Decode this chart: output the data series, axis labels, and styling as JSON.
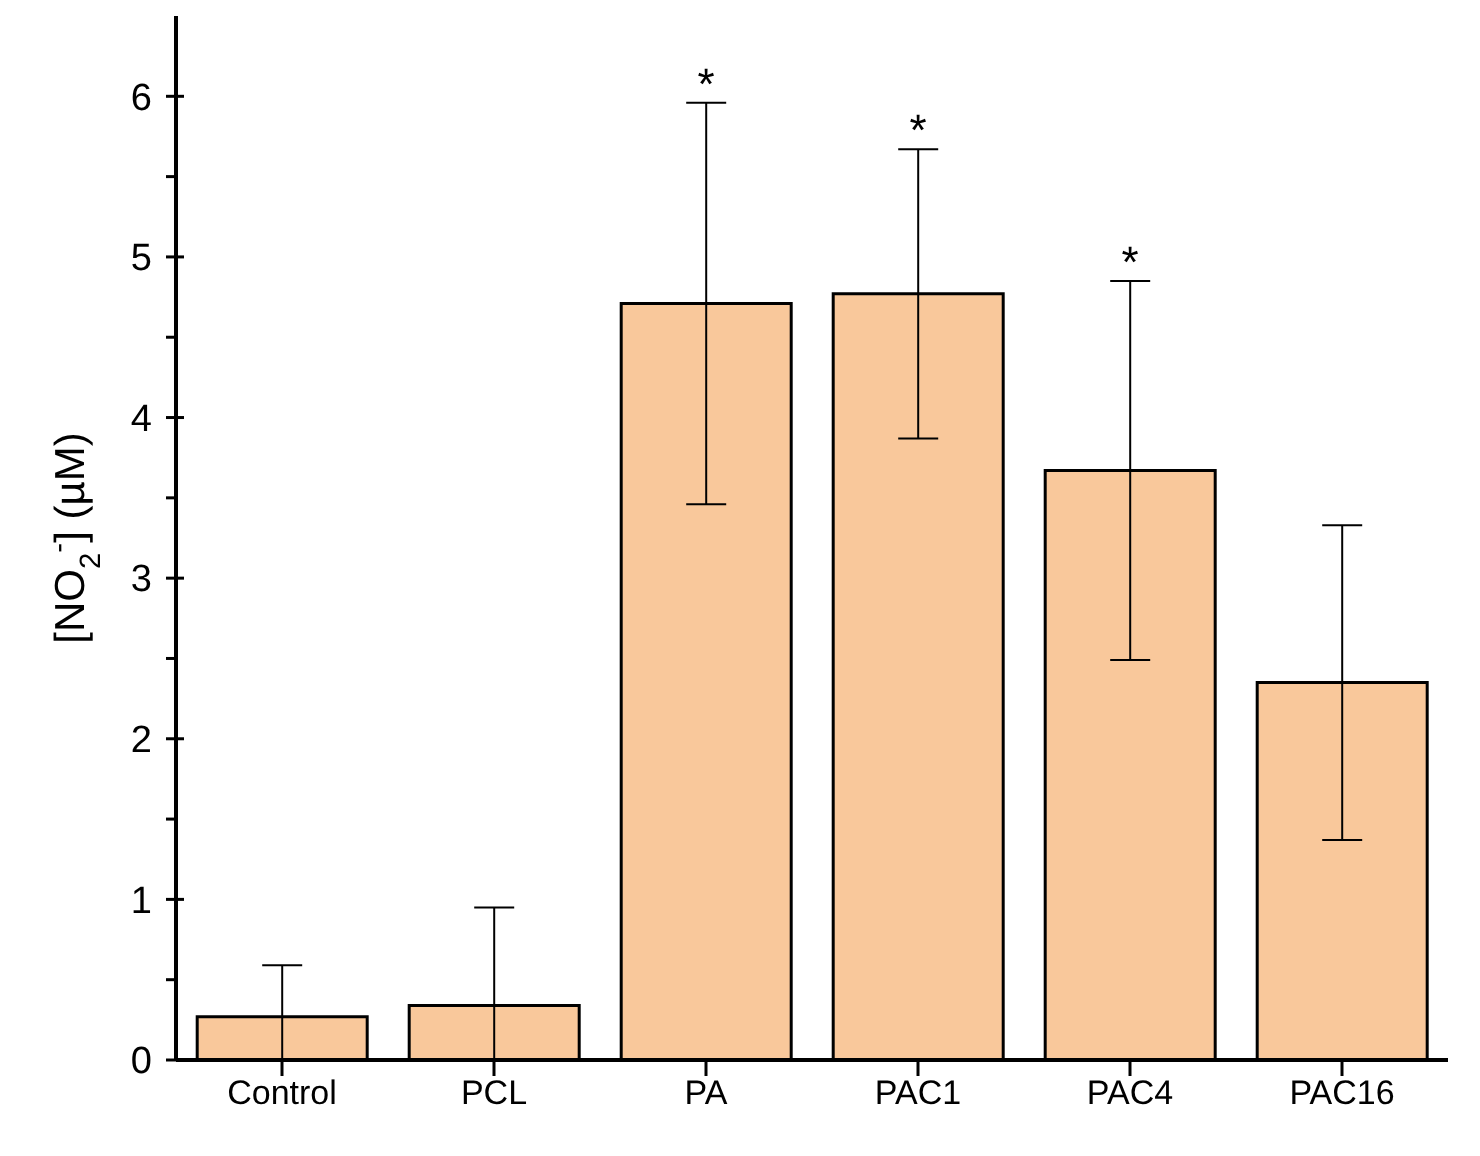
{
  "chart_data": {
    "type": "bar",
    "ylabel": "[NO$_{2}$$^{-}$] (µM)",
    "categories": [
      "Control",
      "PCL",
      "PA",
      "PAC1",
      "PAC4",
      "PAC16"
    ],
    "values": [
      0.27,
      0.34,
      4.71,
      4.77,
      3.67,
      2.35
    ],
    "errors": [
      [
        0,
        0.59
      ],
      [
        0,
        0.95
      ],
      1.25,
      0.9,
      1.18,
      0.98
    ],
    "color": "#f9c89b",
    "ylim": [
      0,
      6.5
    ],
    "yticks": [
      0,
      {
        "value": 0.5,
        "label": null
      },
      1,
      {
        "value": 1.5,
        "label": null
      },
      2,
      {
        "value": 2.5,
        "label": null
      },
      3,
      {
        "value": 3.5,
        "label": null
      },
      4,
      {
        "value": 4.5,
        "label": null
      },
      5,
      {
        "value": 5.5,
        "label": null
      },
      6
    ],
    "annotations": [
      {
        "text": "*",
        "x": "PA",
        "y": 5.96
      },
      {
        "text": "*",
        "x": "PAC1",
        "y": 5.67
      },
      {
        "text": "*",
        "x": "PAC4",
        "y": 4.85
      }
    ],
    "grid": false,
    "legend": false
  }
}
